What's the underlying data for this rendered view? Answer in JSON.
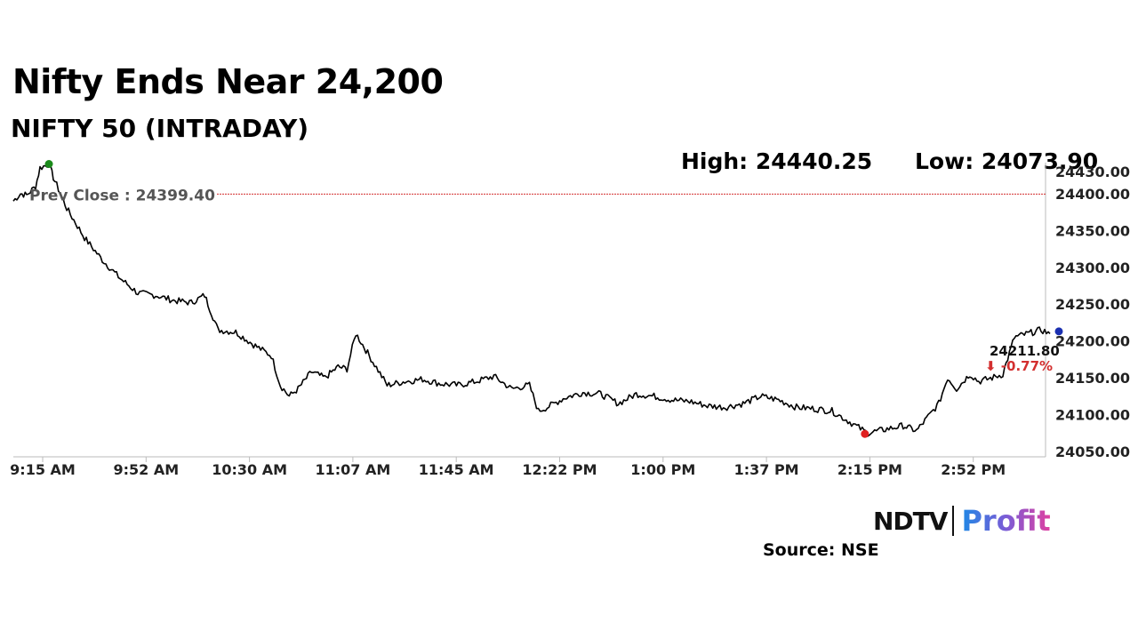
{
  "header": {
    "title": "Nifty Ends Near 24,200",
    "subtitle": "NIFTY 50 (INTRADAY)",
    "high_text": "High: 24440.25",
    "low_text": "Low: 24073.90"
  },
  "footer": {
    "logo_left": "NDTV",
    "logo_right": "Profit",
    "source": "Source: NSE"
  },
  "chart_data": {
    "type": "line",
    "ylim": [
      24050,
      24430
    ],
    "y_ticks": [
      24050,
      24100,
      24150,
      24200,
      24250,
      24300,
      24350,
      24400,
      24430
    ],
    "y_tick_labels": [
      "24050.00",
      "24100.00",
      "24150.00",
      "24200.00",
      "24250.00",
      "24300.00",
      "24350.00",
      "24400.00",
      "24430.00"
    ],
    "x_tick_labels": [
      "9:15 AM",
      "9:52 AM",
      "10:30 AM",
      "11:07 AM",
      "11:45 AM",
      "12:22 PM",
      "1:00 PM",
      "1:37 PM",
      "2:15 PM",
      "2:52 PM"
    ],
    "prev_close": 24399.4,
    "prev_close_label": "Prev Close : 24399.40",
    "high": 24440.25,
    "low": 24073.9,
    "last_value": 24211.8,
    "last_label": "24211.80",
    "change_label": "⬇ -0.77%",
    "colors": {
      "line": "#000000",
      "prev_close": "#d32f2f",
      "high_marker": "#1b8a1b",
      "low_marker": "#e02020",
      "last_marker": "#1a2fb0",
      "change": "#d32f2f",
      "axis": "#bbbbbb"
    },
    "series": [
      {
        "x_index_range": [
          0,
          1000
        ],
        "points": [
          [
            0,
            24390
          ],
          [
            8,
            24400
          ],
          [
            15,
            24398
          ],
          [
            25,
            24410
          ],
          [
            30,
            24435
          ],
          [
            40,
            24440
          ],
          [
            45,
            24422
          ],
          [
            60,
            24380
          ],
          [
            80,
            24340
          ],
          [
            100,
            24310
          ],
          [
            120,
            24285
          ],
          [
            140,
            24265
          ],
          [
            160,
            24262
          ],
          [
            180,
            24255
          ],
          [
            200,
            24252
          ],
          [
            215,
            24262
          ],
          [
            230,
            24215
          ],
          [
            250,
            24212
          ],
          [
            270,
            24195
          ],
          [
            290,
            24180
          ],
          [
            300,
            24140
          ],
          [
            310,
            24125
          ],
          [
            320,
            24135
          ],
          [
            335,
            24158
          ],
          [
            350,
            24150
          ],
          [
            365,
            24165
          ],
          [
            375,
            24162
          ],
          [
            385,
            24210
          ],
          [
            400,
            24180
          ],
          [
            420,
            24140
          ],
          [
            440,
            24145
          ],
          [
            460,
            24148
          ],
          [
            480,
            24142
          ],
          [
            500,
            24140
          ],
          [
            520,
            24145
          ],
          [
            540,
            24152
          ],
          [
            560,
            24135
          ],
          [
            580,
            24140
          ],
          [
            590,
            24105
          ],
          [
            600,
            24110
          ],
          [
            620,
            24123
          ],
          [
            640,
            24130
          ],
          [
            660,
            24128
          ],
          [
            680,
            24115
          ],
          [
            700,
            24128
          ],
          [
            720,
            24125
          ],
          [
            740,
            24120
          ],
          [
            760,
            24118
          ],
          [
            780,
            24112
          ],
          [
            800,
            24110
          ],
          [
            820,
            24115
          ],
          [
            840,
            24125
          ],
          [
            860,
            24120
          ],
          [
            880,
            24110
          ],
          [
            900,
            24108
          ],
          [
            920,
            24105
          ],
          [
            940,
            24090
          ],
          [
            960,
            24075
          ],
          [
            980,
            24080
          ],
          [
            1000,
            24085
          ],
          [
            1015,
            24078
          ],
          [
            1030,
            24100
          ],
          [
            1040,
            24115
          ],
          [
            1050,
            24150
          ],
          [
            1060,
            24135
          ],
          [
            1075,
            24155
          ],
          [
            1085,
            24145
          ],
          [
            1100,
            24150
          ],
          [
            1112,
            24155
          ],
          [
            1125,
            24205
          ],
          [
            1140,
            24210
          ],
          [
            1155,
            24215
          ],
          [
            1165,
            24210
          ]
        ]
      }
    ],
    "markers": {
      "high_index": 40,
      "low_index": 957,
      "last_index": 1165
    }
  }
}
